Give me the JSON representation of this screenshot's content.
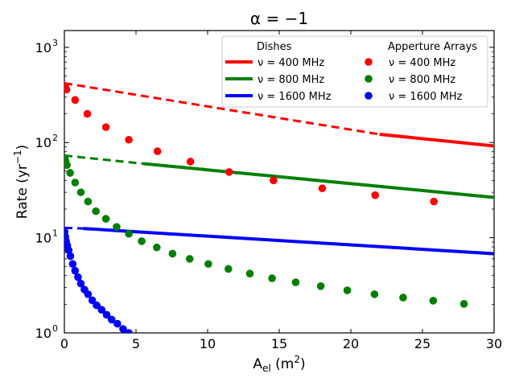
{
  "chart_data": {
    "type": "line",
    "title": "α = −1",
    "xlabel": "A",
    "xlabel_sub": "el",
    "xlabel_unit_open": " (m",
    "xlabel_unit_sup": "2",
    "xlabel_unit_close": ")",
    "ylabel": "Rate (yr",
    "ylabel_sup": "−1",
    "ylabel_close": ")",
    "xlim": [
      0,
      30
    ],
    "ylim": [
      1,
      1500
    ],
    "yscale": "log",
    "grid": false,
    "x_ticks": [
      0,
      5,
      10,
      15,
      20,
      25,
      30
    ],
    "x_tick_labels": [
      "0",
      "5",
      "10",
      "15",
      "20",
      "25",
      "30"
    ],
    "y_ticks": [
      1,
      10,
      100,
      1000
    ],
    "y_tick_labels": [
      "10",
      "10",
      "10",
      "10"
    ],
    "y_tick_exps": [
      "0",
      "1",
      "2",
      "3"
    ],
    "legend_position": "top-right",
    "legend": {
      "col1_title": "Dishes",
      "col2_title": "Apperture Arrays"
    },
    "dishes": [
      {
        "name": "ν = 400 MHz",
        "color": "#ff0000",
        "dashed": {
          "x": [
            0,
            22
          ],
          "y": [
            420,
            122
          ]
        },
        "solid": {
          "x": [
            22,
            30
          ],
          "y": [
            122,
            92
          ]
        }
      },
      {
        "name": "ν = 800 MHz",
        "color": "#008000",
        "dashed": {
          "x": [
            0,
            5.5
          ],
          "y": [
            73,
            60
          ]
        },
        "solid": {
          "x": [
            5.5,
            30
          ],
          "y": [
            60,
            26.5
          ]
        }
      },
      {
        "name": "ν = 1600 MHz",
        "color": "#0000ff",
        "dashed": {
          "x": [
            0,
            1.3
          ],
          "y": [
            12.7,
            12.5
          ]
        },
        "solid": {
          "x": [
            1.3,
            30
          ],
          "y": [
            12.5,
            6.8
          ]
        }
      }
    ],
    "arrays": [
      {
        "name": "ν = 400 MHz",
        "color": "#ff0000",
        "x": [
          0.05,
          0.15,
          0.75,
          1.6,
          2.9,
          4.5,
          6.5,
          8.8,
          11.5,
          14.6,
          18.0,
          21.7,
          25.8
        ],
        "y": [
          390,
          360,
          280,
          200,
          145,
          107,
          81,
          63,
          49,
          40,
          33,
          28,
          24
        ]
      },
      {
        "name": "ν = 800 MHz",
        "color": "#008000",
        "x": [
          0.02,
          0.08,
          0.18,
          0.4,
          0.75,
          1.15,
          1.65,
          2.2,
          2.9,
          3.65,
          4.5,
          5.4,
          6.45,
          7.55,
          8.75,
          10.05,
          11.45,
          12.95,
          14.5,
          16.15,
          17.9,
          19.75,
          21.65,
          23.65,
          25.75,
          27.9
        ],
        "y": [
          68,
          64,
          58,
          48,
          38,
          30,
          24,
          19,
          15.8,
          13,
          11,
          9.2,
          7.9,
          6.8,
          6.0,
          5.3,
          4.7,
          4.2,
          3.75,
          3.4,
          3.1,
          2.8,
          2.55,
          2.35,
          2.18,
          2.02
        ]
      },
      {
        "name": "ν = 1600 MHz",
        "color": "#0000ff",
        "x": [
          0.02,
          0.06,
          0.12,
          0.2,
          0.3,
          0.42,
          0.58,
          0.75,
          0.95,
          1.15,
          1.4,
          1.65,
          1.95,
          2.25,
          2.6,
          2.95,
          3.3,
          3.7,
          4.1,
          4.5
        ],
        "y": [
          11.5,
          10.3,
          9.2,
          8.3,
          7.4,
          6.4,
          5.3,
          4.5,
          3.85,
          3.3,
          2.85,
          2.55,
          2.2,
          1.95,
          1.75,
          1.55,
          1.38,
          1.25,
          1.1,
          1.0
        ]
      }
    ]
  }
}
